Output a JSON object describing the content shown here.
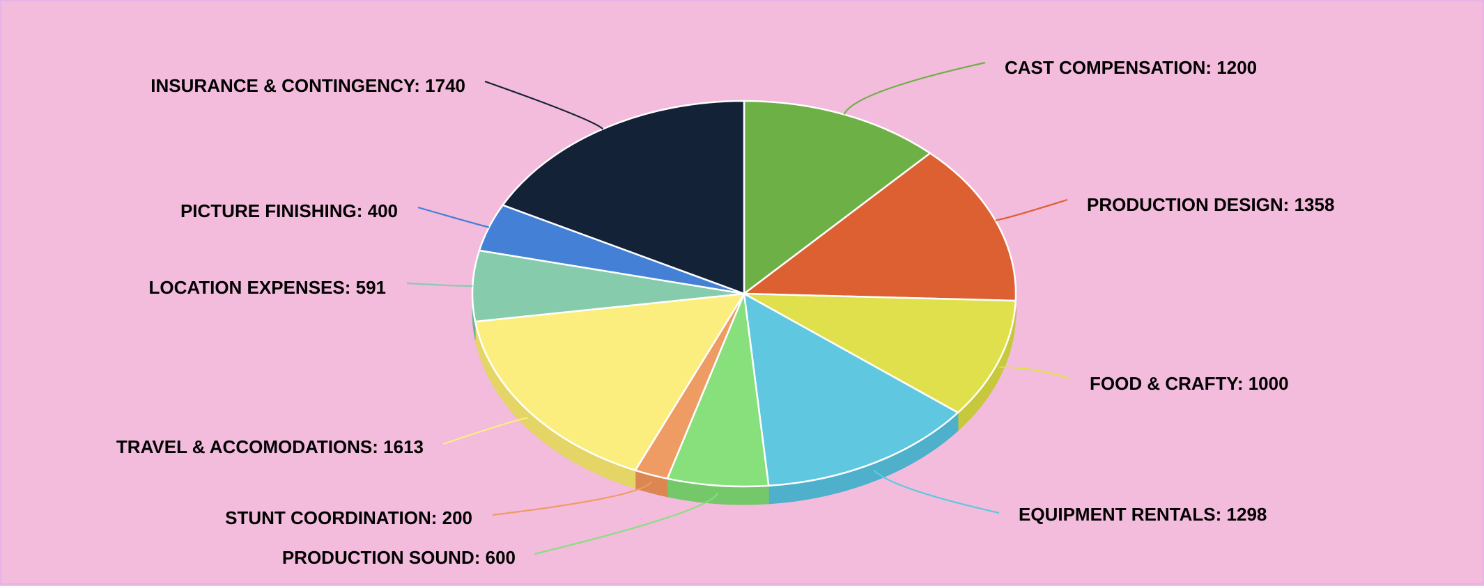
{
  "chart_data": {
    "type": "pie",
    "title": "",
    "style": "3d-tilted",
    "background_color": "#f3bbdc",
    "slices": [
      {
        "label": "CAST COMPENSATION: 1200",
        "category": "CAST COMPENSATION",
        "value": 1200,
        "color": "#6db046",
        "side_color": "#5a9a38"
      },
      {
        "label": "PRODUCTION DESIGN: 1358",
        "category": "PRODUCTION DESIGN",
        "value": 1358,
        "color": "#dd6032",
        "side_color": "#c45128"
      },
      {
        "label": "FOOD & CRAFTY: 1000",
        "category": "FOOD & CRAFTY",
        "value": 1000,
        "color": "#dfe04b",
        "side_color": "#c7c83b"
      },
      {
        "label": "EQUIPMENT RENTALS: 1298",
        "category": "EQUIPMENT RENTALS",
        "value": 1298,
        "color": "#5fc8e0",
        "side_color": "#4eb0ca"
      },
      {
        "label": "PRODUCTION SOUND: 600",
        "category": "PRODUCTION SOUND",
        "value": 600,
        "color": "#87e07c",
        "side_color": "#74c86a"
      },
      {
        "label": "STUNT COORDINATION: 200",
        "category": "STUNT COORDINATION",
        "value": 200,
        "color": "#ef9b64",
        "side_color": "#dc8651"
      },
      {
        "label": "TRAVEL & ACCOMODATIONS: 1613",
        "category": "TRAVEL & ACCOMODATIONS",
        "value": 1613,
        "color": "#fcee7e",
        "side_color": "#e4d566"
      },
      {
        "label": "LOCATION EXPENSES: 591",
        "category": "LOCATION EXPENSES",
        "value": 591,
        "color": "#86ccac",
        "side_color": "#6fb294"
      },
      {
        "label": "PICTURE FINISHING: 400",
        "category": "PICTURE FINISHING",
        "value": 400,
        "color": "#4480d6",
        "side_color": "#3469bc"
      },
      {
        "label": "INSURANCE & CONTINGENCY: 1740",
        "category": "INSURANCE & CONTINGENCY",
        "value": 1740,
        "color": "#132237",
        "side_color": "#0c1726"
      }
    ]
  }
}
